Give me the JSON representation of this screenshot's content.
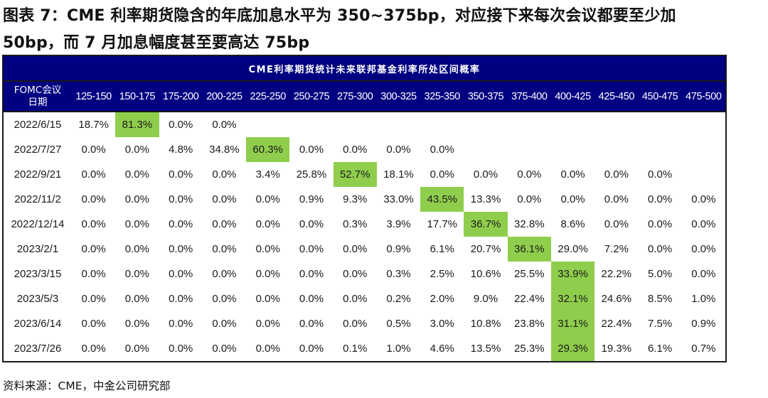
{
  "title": {
    "line1": "图表 7：CME 利率期货隐含的年底加息水平为 350~375bp，对应接下来每次会议都要至少加",
    "line2": "50bp，而 7 月加息幅度甚至要高达 75bp"
  },
  "table": {
    "super_header": "CME利率期货统计未来联邦基金利率所处区间概率",
    "date_header_line1": "FOMC会议",
    "date_header_line2": "日期",
    "columns": [
      "125-150",
      "150-175",
      "175-200",
      "200-225",
      "225-250",
      "250-275",
      "275-300",
      "300-325",
      "325-350",
      "350-375",
      "375-400",
      "400-425",
      "425-450",
      "450-475",
      "475-500"
    ],
    "highlight_color": "#8fce4c",
    "header_bg_color": "#000080",
    "rows": [
      {
        "date": "2022/6/15",
        "highlight": 1,
        "cells": [
          "18.7%",
          "81.3%",
          "0.0%",
          "0.0%",
          "",
          "",
          "",
          "",
          "",
          "",
          "",
          "",
          "",
          "",
          ""
        ]
      },
      {
        "date": "2022/7/27",
        "highlight": 4,
        "cells": [
          "0.0%",
          "0.0%",
          "4.8%",
          "34.8%",
          "60.3%",
          "0.0%",
          "0.0%",
          "0.0%",
          "0.0%",
          "",
          "",
          "",
          "",
          "",
          ""
        ]
      },
      {
        "date": "2022/9/21",
        "highlight": 6,
        "cells": [
          "0.0%",
          "0.0%",
          "0.0%",
          "0.0%",
          "3.4%",
          "25.8%",
          "52.7%",
          "18.1%",
          "0.0%",
          "0.0%",
          "0.0%",
          "0.0%",
          "0.0%",
          "0.0%",
          ""
        ]
      },
      {
        "date": "2022/11/2",
        "highlight": 8,
        "cells": [
          "0.0%",
          "0.0%",
          "0.0%",
          "0.0%",
          "0.0%",
          "0.9%",
          "9.3%",
          "33.0%",
          "43.5%",
          "13.3%",
          "0.0%",
          "0.0%",
          "0.0%",
          "0.0%",
          "0.0%"
        ]
      },
      {
        "date": "2022/12/14",
        "highlight": 9,
        "cells": [
          "0.0%",
          "0.0%",
          "0.0%",
          "0.0%",
          "0.0%",
          "0.0%",
          "0.3%",
          "3.9%",
          "17.7%",
          "36.7%",
          "32.8%",
          "8.6%",
          "0.0%",
          "0.0%",
          "0.0%"
        ]
      },
      {
        "date": "2023/2/1",
        "highlight": 10,
        "cells": [
          "0.0%",
          "0.0%",
          "0.0%",
          "0.0%",
          "0.0%",
          "0.0%",
          "0.0%",
          "0.9%",
          "6.1%",
          "20.7%",
          "36.1%",
          "29.0%",
          "7.2%",
          "0.0%",
          "0.0%"
        ]
      },
      {
        "date": "2023/3/15",
        "highlight": 11,
        "cells": [
          "0.0%",
          "0.0%",
          "0.0%",
          "0.0%",
          "0.0%",
          "0.0%",
          "0.0%",
          "0.3%",
          "2.5%",
          "10.6%",
          "25.5%",
          "33.9%",
          "22.2%",
          "5.0%",
          "0.0%"
        ]
      },
      {
        "date": "2023/5/3",
        "highlight": 11,
        "cells": [
          "0.0%",
          "0.0%",
          "0.0%",
          "0.0%",
          "0.0%",
          "0.0%",
          "0.0%",
          "0.2%",
          "2.0%",
          "9.0%",
          "22.4%",
          "32.1%",
          "24.6%",
          "8.5%",
          "1.0%"
        ]
      },
      {
        "date": "2023/6/14",
        "highlight": 11,
        "cells": [
          "0.0%",
          "0.0%",
          "0.0%",
          "0.0%",
          "0.0%",
          "0.0%",
          "0.0%",
          "0.5%",
          "3.0%",
          "10.8%",
          "23.8%",
          "31.1%",
          "22.4%",
          "7.5%",
          "0.9%"
        ]
      },
      {
        "date": "2023/7/26",
        "highlight": 11,
        "cells": [
          "0.0%",
          "0.0%",
          "0.0%",
          "0.0%",
          "0.0%",
          "0.0%",
          "0.1%",
          "1.0%",
          "4.6%",
          "13.5%",
          "25.3%",
          "29.3%",
          "19.3%",
          "6.1%",
          "0.7%"
        ]
      }
    ]
  },
  "source": "资料来源：CME，中金公司研究部"
}
